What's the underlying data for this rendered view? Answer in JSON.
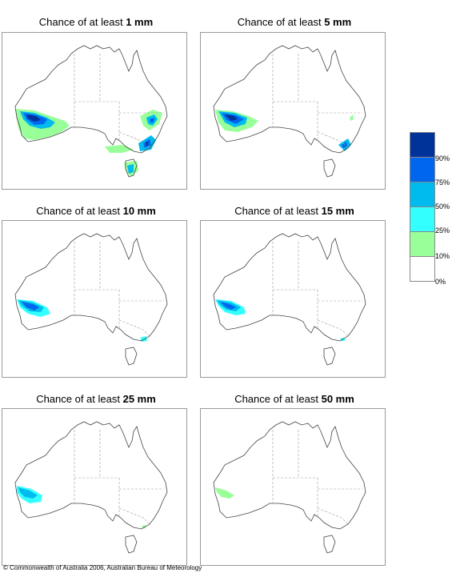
{
  "title_prefix": "Chance of at least",
  "panels": [
    {
      "amount": "1 mm"
    },
    {
      "amount": "5 mm"
    },
    {
      "amount": "10 mm"
    },
    {
      "amount": "15 mm"
    },
    {
      "amount": "25 mm"
    },
    {
      "amount": "50 mm"
    }
  ],
  "legend": {
    "labels": [
      "90%",
      "75%",
      "50%",
      "25%",
      "10%",
      "0%"
    ],
    "colors": [
      "#003399",
      "#0066ee",
      "#00bbee",
      "#33ffff",
      "#99ff99",
      "#ffffff"
    ]
  },
  "copyright": "© Commonwealth of Australia 2006, Australian Bureau of Meteorology"
}
